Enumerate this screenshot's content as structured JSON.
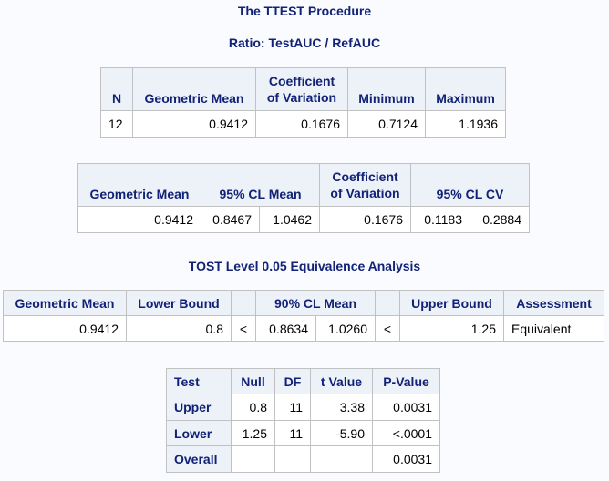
{
  "title": "The TTEST Procedure",
  "subtitle": "Ratio: TestAUC / RefAUC",
  "summary_table": {
    "headers": [
      "N",
      "Geometric Mean",
      "Coefficient of Variation",
      "Minimum",
      "Maximum"
    ],
    "row": [
      "12",
      "0.9412",
      "0.1676",
      "0.7124",
      "1.1936"
    ]
  },
  "cl_table": {
    "headers": [
      "Geometric Mean",
      "95% CL Mean",
      "Coefficient of Variation",
      "95% CL CV"
    ],
    "row": [
      "0.9412",
      "0.8467",
      "1.0462",
      "0.1676",
      "0.1183",
      "0.2884"
    ]
  },
  "tost_title": "TOST Level 0.05 Equivalence Analysis",
  "tost_table": {
    "headers": [
      "Geometric Mean",
      "Lower Bound",
      "",
      "90% CL Mean",
      "",
      "Upper Bound",
      "Assessment"
    ],
    "row": [
      "0.9412",
      "0.8",
      "<",
      "0.8634",
      "1.0260",
      "<",
      "1.25",
      "Equivalent"
    ]
  },
  "test_table": {
    "headers": [
      "Test",
      "Null",
      "DF",
      "t Value",
      "P-Value"
    ],
    "rows": [
      [
        "Upper",
        "0.8",
        "11",
        "3.38",
        "0.0031"
      ],
      [
        "Lower",
        "1.25",
        "11",
        "-5.90",
        "<.0001"
      ],
      [
        "Overall",
        "",
        "",
        "",
        "0.0031"
      ]
    ]
  }
}
